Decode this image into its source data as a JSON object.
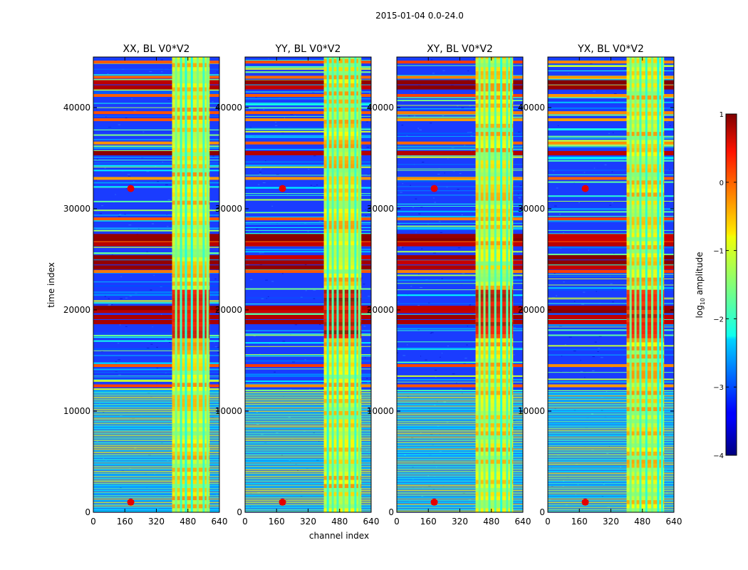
{
  "chart_data": {
    "type": "heatmap",
    "suptitle": "2015-01-04 0.0-24.0",
    "xlabel": "channel index",
    "ylabel": "time index",
    "xlim": [
      0,
      640
    ],
    "ylim": [
      0,
      45000
    ],
    "xticks": [
      "0",
      "160",
      "320",
      "480",
      "640"
    ],
    "yticks": [
      "0",
      "10000",
      "20000",
      "30000",
      "40000"
    ],
    "panels": [
      {
        "title": "XX, BL V0*V2",
        "intensity": 0.85
      },
      {
        "title": "YY, BL V0*V2",
        "intensity": 1.0
      },
      {
        "title": "XY, BL V0*V2",
        "intensity": 0.9
      },
      {
        "title": "YX, BL V0*V2",
        "intensity": 0.95
      }
    ],
    "colorbar": {
      "label_prefix": "log",
      "label_sub": "10",
      "label_suffix": " amplitude",
      "min": -4,
      "max": 1,
      "ticks": [
        "1",
        "0",
        "−1",
        "−2",
        "−3",
        "−4"
      ],
      "colormap": "jet"
    },
    "features": {
      "rfi_band_channels": [
        400,
        590
      ],
      "band_columns": [
        420,
        445,
        470,
        500,
        530,
        560,
        580
      ],
      "bright_time_rows": [
        18800,
        19300,
        19900,
        20200,
        24200,
        24700,
        25200,
        26500,
        27000,
        27300,
        35500,
        42000,
        42500
      ],
      "flagged_lines_time": [
        12500,
        14500,
        20000,
        23800,
        26800,
        29000,
        33000,
        36500,
        38800,
        39500,
        41200,
        43000,
        44500
      ],
      "low_time_green_region": [
        0,
        12000
      ],
      "spot_channel": 190,
      "spot_times": [
        1000,
        32000
      ]
    }
  }
}
